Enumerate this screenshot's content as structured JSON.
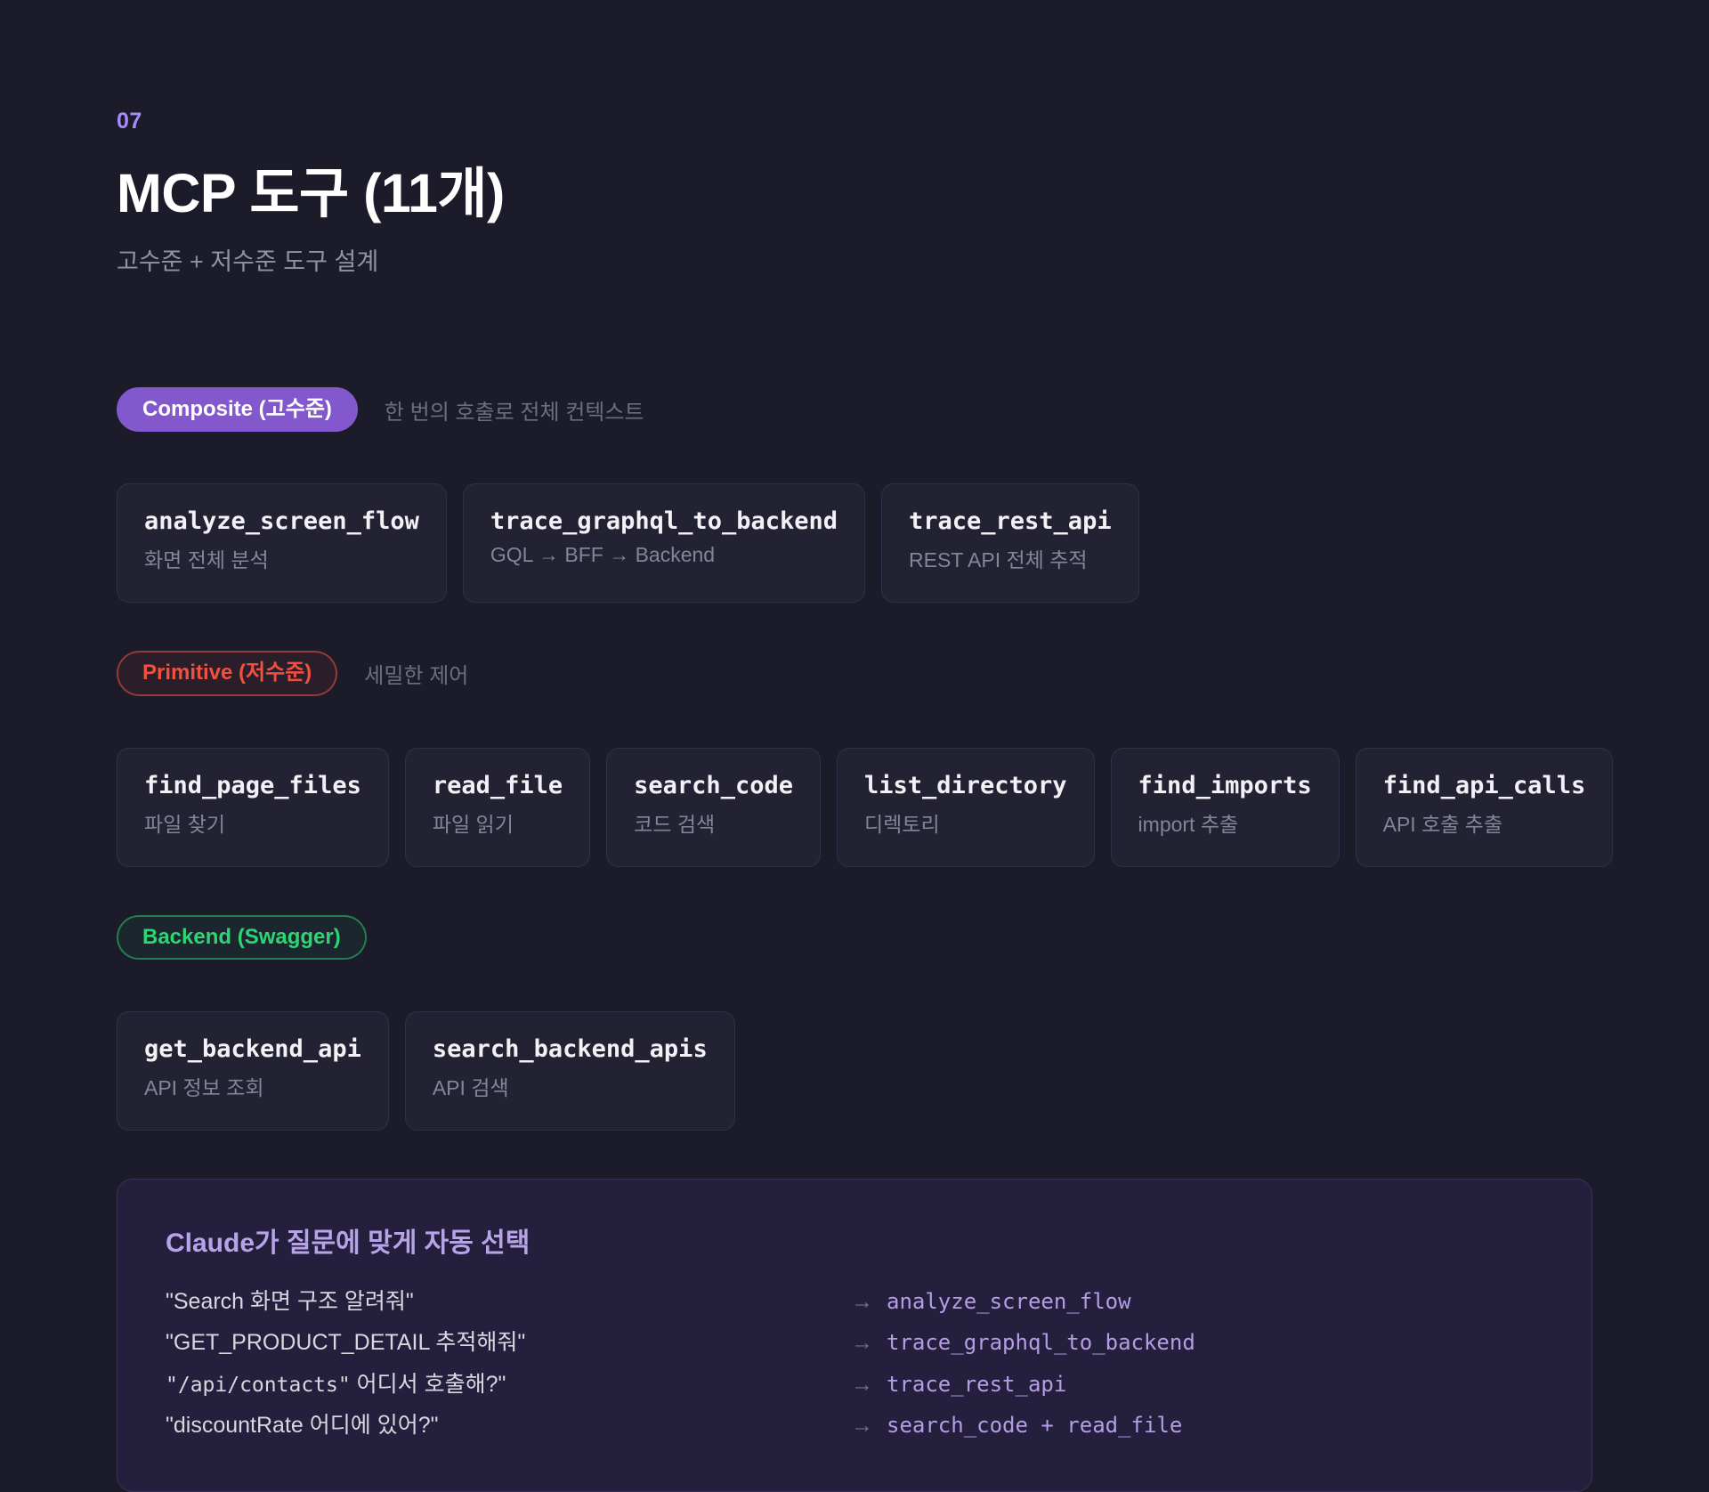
{
  "page": {
    "slide_number": "07",
    "title": "MCP 도구 (11개)",
    "subtitle": "고수준 + 저수준 도구 설계"
  },
  "colors": {
    "background": "#1b1b2a",
    "card_background": "#222233",
    "composite_badge": "#8258cc",
    "primitive_accent": "#f0503e",
    "backend_accent": "#2ed573",
    "panel_background": "#241f3c",
    "panel_title": "#b7a3e8",
    "tool_name_purple": "#b49de4",
    "slide_number_purple": "#a78bfa"
  },
  "sections": [
    {
      "badge": "Composite (고수준)",
      "side_label": "한 번의 호출로 전체 컨텍스트",
      "tools": [
        {
          "name": "analyze_screen_flow",
          "desc": "화면 전체 분석"
        },
        {
          "name": "trace_graphql_to_backend",
          "desc": "GQL → BFF → Backend"
        },
        {
          "name": "trace_rest_api",
          "desc": "REST API 전체 추적"
        }
      ]
    },
    {
      "badge": "Primitive (저수준)",
      "side_label": "세밀한 제어",
      "tools": [
        {
          "name": "find_page_files",
          "desc": "파일 찾기"
        },
        {
          "name": "read_file",
          "desc": "파일 읽기"
        },
        {
          "name": "search_code",
          "desc": "코드 검색"
        },
        {
          "name": "list_directory",
          "desc": "디렉토리"
        },
        {
          "name": "find_imports",
          "desc": "import 추출"
        },
        {
          "name": "find_api_calls",
          "desc": "API 호출 추출"
        }
      ]
    },
    {
      "badge": "Backend (Swagger)",
      "tools": [
        {
          "name": "get_backend_api",
          "desc": "API 정보 조회"
        },
        {
          "name": "search_backend_apis",
          "desc": "API 검색"
        }
      ]
    }
  ],
  "panel": {
    "title": "Claude가 질문에 맞게 자동 선택",
    "arrow": "→",
    "rows": [
      {
        "q_text": "\"Search 화면 구조 알려줘\"",
        "tool": "analyze_screen_flow"
      },
      {
        "q_text": "\"GET_PRODUCT_DETAIL 추적해줘\"",
        "tool": "trace_graphql_to_backend"
      },
      {
        "q_mono": "\"/api/contacts\"",
        "q_text": " 어디서 호출해?\"",
        "tool": "trace_rest_api"
      },
      {
        "q_text": "\"discountRate 어디에 있어?\"",
        "tool": "search_code + read_file"
      }
    ]
  }
}
